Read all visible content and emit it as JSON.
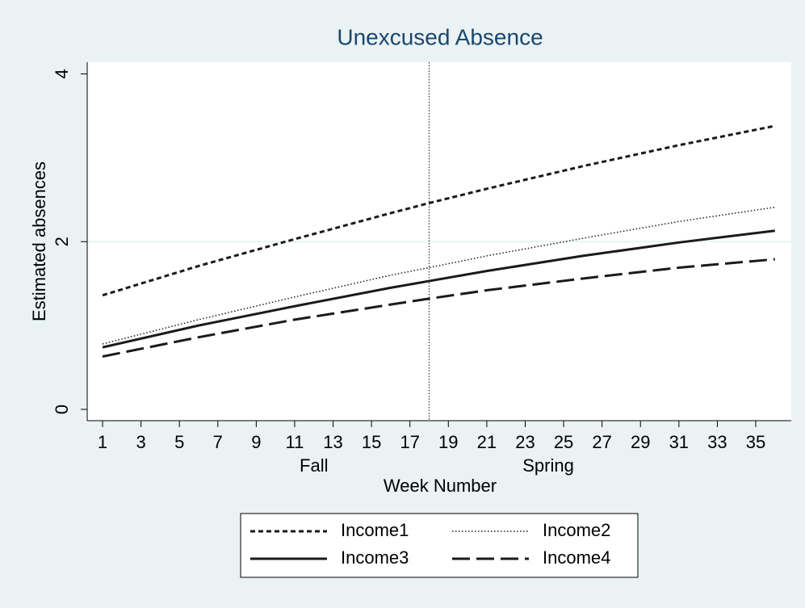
{
  "chart_data": {
    "type": "line",
    "title": "Unexcused Absence",
    "x_label": "Week Number",
    "y_label": "Estimated absences",
    "x": [
      1,
      6,
      11,
      16,
      18,
      21,
      26,
      31,
      36
    ],
    "series": [
      {
        "name": "Income1",
        "color": "#1a1a1a",
        "dash": "short",
        "values": [
          1.36,
          1.71,
          2.03,
          2.34,
          2.46,
          2.63,
          2.9,
          3.15,
          3.38
        ]
      },
      {
        "name": "Income2",
        "color": "#1a1a1a",
        "dash": "dot",
        "values": [
          0.78,
          1.07,
          1.34,
          1.6,
          1.69,
          1.83,
          2.04,
          2.24,
          2.41
        ]
      },
      {
        "name": "Income3",
        "color": "#1a1a1a",
        "dash": "solid",
        "values": [
          0.74,
          1.0,
          1.23,
          1.45,
          1.53,
          1.65,
          1.83,
          1.99,
          2.13
        ]
      },
      {
        "name": "Income4",
        "color": "#1a1a1a",
        "dash": "long",
        "values": [
          0.63,
          0.86,
          1.07,
          1.25,
          1.32,
          1.42,
          1.56,
          1.69,
          1.79
        ]
      }
    ],
    "xlim": [
      0.2,
      36.85
    ],
    "ylim": [
      -0.135,
      4.14
    ],
    "xticks": [
      1,
      3,
      5,
      7,
      9,
      11,
      13,
      15,
      17,
      19,
      21,
      23,
      25,
      27,
      29,
      31,
      33,
      35
    ],
    "yticks": [
      0,
      2,
      4
    ],
    "period_labels": [
      {
        "value": 12,
        "label": "Fall"
      },
      {
        "value": 24.2,
        "label": "Spring"
      }
    ],
    "xline": 18,
    "grid": true,
    "legend": "bottom"
  }
}
